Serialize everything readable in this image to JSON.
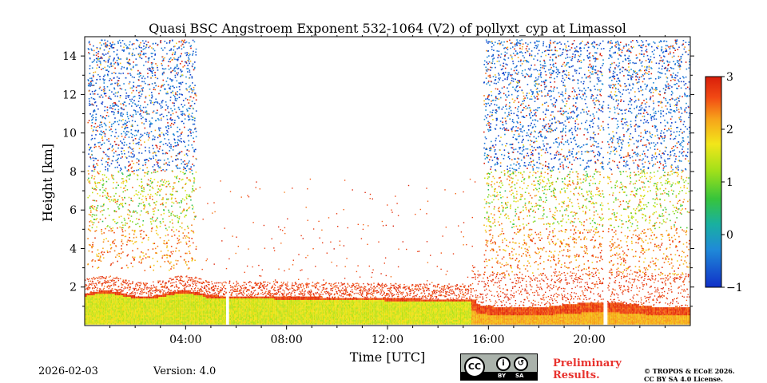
{
  "chart_data": {
    "type": "heatmap",
    "title": "Quasi BSC Angstroem Exponent 532-1064 (V2) of pollyxt_cyp at Limassol",
    "xlabel": "Time [UTC]",
    "ylabel": "Height [km]",
    "xlim_hours": [
      0,
      24
    ],
    "ylim_km": [
      0,
      15
    ],
    "x_ticks": [
      {
        "value": 4,
        "label": "04:00"
      },
      {
        "value": 8,
        "label": "08:00"
      },
      {
        "value": 12,
        "label": "12:00"
      },
      {
        "value": 16,
        "label": "16:00"
      },
      {
        "value": 20,
        "label": "20:00"
      }
    ],
    "y_ticks": [
      {
        "value": 2,
        "label": "2"
      },
      {
        "value": 4,
        "label": "4"
      },
      {
        "value": 6,
        "label": "6"
      },
      {
        "value": 8,
        "label": "8"
      },
      {
        "value": 10,
        "label": "10"
      },
      {
        "value": 12,
        "label": "12"
      },
      {
        "value": 14,
        "label": "14"
      }
    ],
    "colorbar": {
      "range": [
        -1,
        3
      ],
      "ticks": [
        {
          "value": 3,
          "label": "3"
        },
        {
          "value": 2,
          "label": "2"
        },
        {
          "value": 1,
          "label": "1"
        },
        {
          "value": 0,
          "label": "0"
        },
        {
          "value": -1,
          "label": "−1"
        }
      ],
      "colors": [
        "#1030c8",
        "#1f8ad8",
        "#19b0a0",
        "#37c43b",
        "#9fe01a",
        "#f2e61a",
        "#f7a21a",
        "#f24a14",
        "#d81e0a"
      ]
    },
    "data_gaps_hours": [
      {
        "start": 5.6,
        "end": 5.7
      },
      {
        "start": 20.55,
        "end": 20.7
      }
    ],
    "regions": [
      {
        "name": "night noise (first)",
        "t_start": 0.1,
        "t_end": 4.4,
        "h_min": 2.8,
        "h_max": 14.8,
        "value_mean": 1.4,
        "value_spread": 2.8
      },
      {
        "name": "aerosol layer",
        "t_start": 0.0,
        "t_end": 24.0,
        "h_min": 0.05,
        "h_max": 1.6,
        "value_mean": 1.2,
        "value_spread": 0.3
      },
      {
        "name": "night noise (second)",
        "t_start": 15.8,
        "t_end": 24.0,
        "h_min": 2.5,
        "h_max": 14.8,
        "value_mean": 1.4,
        "value_spread": 2.8
      }
    ]
  },
  "footer": {
    "date": "2026-02-03",
    "version": "Version: 4.0",
    "license_badge": {
      "cc": "CC",
      "by": "BY",
      "sa": "SA"
    },
    "preliminary_line1": "Preliminary",
    "preliminary_line2": "Results.",
    "copyright_line1": "© TROPOS & ECoE 2026.",
    "copyright_line2": "CC BY SA 4.0 License."
  }
}
